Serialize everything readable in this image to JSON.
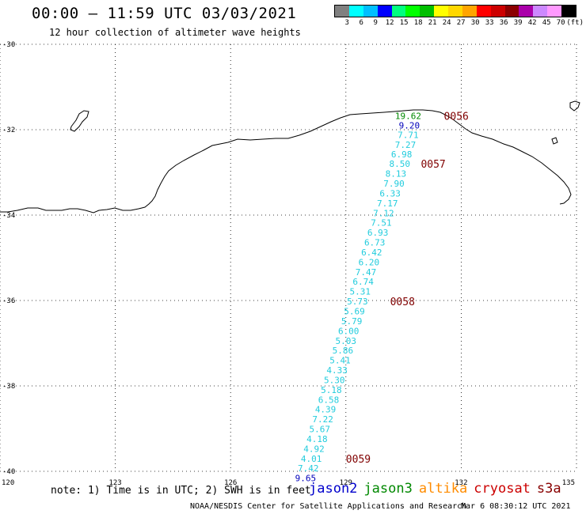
{
  "header": {
    "title": "00:00 — 11:59 UTC 03/03/2021",
    "subtitle": "12 hour collection of altimeter wave heights"
  },
  "legend": {
    "colors": [
      "#808080",
      "#00ffff",
      "#00bfff",
      "#0000ff",
      "#00ff7f",
      "#00ff00",
      "#00bf00",
      "#ffff00",
      "#ffd700",
      "#ffa500",
      "#ff0000",
      "#cc0000",
      "#8b0000",
      "#aa00aa",
      "#cc88ff",
      "#ff99ff",
      "#000000"
    ],
    "labels": [
      "3",
      "6",
      "9",
      "12",
      "15",
      "18",
      "21",
      "24",
      "27",
      "30",
      "33",
      "36",
      "39",
      "42",
      "45",
      "70",
      "(ft)"
    ]
  },
  "map": {
    "lon_ticks": [
      "120",
      "123",
      "126",
      "129",
      "132",
      "135"
    ],
    "lat_ticks": [
      "-30",
      "-32",
      "-34",
      "-36",
      "-38",
      "-40"
    ],
    "track_colors": {
      "cyan": "#22ccdd",
      "blue": "#0000bb",
      "green": "#008800",
      "maroon": "#800000"
    },
    "track_labels": [
      {
        "text": "19.62",
        "lon": 130.62,
        "lat": -31.68,
        "color": "green"
      },
      {
        "text": "9.20",
        "lon": 130.65,
        "lat": -31.9,
        "color": "blue"
      },
      {
        "text": "7.71",
        "lon": 130.62,
        "lat": -32.12,
        "color": "cyan"
      },
      {
        "text": "7.27",
        "lon": 130.55,
        "lat": -32.35,
        "color": "cyan"
      },
      {
        "text": "6.98",
        "lon": 130.45,
        "lat": -32.57,
        "color": "cyan"
      },
      {
        "text": "8.50",
        "lon": 130.4,
        "lat": -32.8,
        "color": "cyan"
      },
      {
        "text": "8.13",
        "lon": 130.3,
        "lat": -33.03,
        "color": "cyan"
      },
      {
        "text": "7.90",
        "lon": 130.25,
        "lat": -33.26,
        "color": "cyan"
      },
      {
        "text": "6.33",
        "lon": 130.15,
        "lat": -33.49,
        "color": "cyan"
      },
      {
        "text": "7.17",
        "lon": 130.08,
        "lat": -33.72,
        "color": "cyan"
      },
      {
        "text": "7.12",
        "lon": 129.98,
        "lat": -33.95,
        "color": "cyan"
      },
      {
        "text": "7.51",
        "lon": 129.92,
        "lat": -34.18,
        "color": "cyan"
      },
      {
        "text": "6.93",
        "lon": 129.83,
        "lat": -34.41,
        "color": "cyan"
      },
      {
        "text": "6.73",
        "lon": 129.75,
        "lat": -34.64,
        "color": "cyan"
      },
      {
        "text": "6.42",
        "lon": 129.67,
        "lat": -34.87,
        "color": "cyan"
      },
      {
        "text": "6.20",
        "lon": 129.6,
        "lat": -35.1,
        "color": "cyan"
      },
      {
        "text": "7.47",
        "lon": 129.52,
        "lat": -35.33,
        "color": "cyan"
      },
      {
        "text": "6.74",
        "lon": 129.45,
        "lat": -35.56,
        "color": "cyan"
      },
      {
        "text": "5.31",
        "lon": 129.37,
        "lat": -35.79,
        "color": "cyan"
      },
      {
        "text": "5.73",
        "lon": 129.3,
        "lat": -36.02,
        "color": "cyan"
      },
      {
        "text": "5.69",
        "lon": 129.22,
        "lat": -36.25,
        "color": "cyan"
      },
      {
        "text": "5.79",
        "lon": 129.15,
        "lat": -36.48,
        "color": "cyan"
      },
      {
        "text": "6.00",
        "lon": 129.07,
        "lat": -36.71,
        "color": "cyan"
      },
      {
        "text": "5.03",
        "lon": 129.0,
        "lat": -36.94,
        "color": "cyan"
      },
      {
        "text": "5.86",
        "lon": 128.92,
        "lat": -37.17,
        "color": "cyan"
      },
      {
        "text": "5.41",
        "lon": 128.85,
        "lat": -37.4,
        "color": "cyan"
      },
      {
        "text": "4.33",
        "lon": 128.77,
        "lat": -37.63,
        "color": "cyan"
      },
      {
        "text": "5.30",
        "lon": 128.7,
        "lat": -37.86,
        "color": "cyan"
      },
      {
        "text": "5.18",
        "lon": 128.62,
        "lat": -38.09,
        "color": "cyan"
      },
      {
        "text": "6.58",
        "lon": 128.55,
        "lat": -38.32,
        "color": "cyan"
      },
      {
        "text": "4.39",
        "lon": 128.47,
        "lat": -38.55,
        "color": "cyan"
      },
      {
        "text": "7.22",
        "lon": 128.4,
        "lat": -38.78,
        "color": "cyan"
      },
      {
        "text": "5.67",
        "lon": 128.32,
        "lat": -39.01,
        "color": "cyan"
      },
      {
        "text": "4.18",
        "lon": 128.25,
        "lat": -39.24,
        "color": "cyan"
      },
      {
        "text": "4.92",
        "lon": 128.17,
        "lat": -39.47,
        "color": "cyan"
      },
      {
        "text": "4.01",
        "lon": 128.1,
        "lat": -39.7,
        "color": "cyan"
      },
      {
        "text": "7.42",
        "lon": 128.02,
        "lat": -39.93,
        "color": "cyan"
      },
      {
        "text": "9.65",
        "lon": 127.95,
        "lat": -40.16,
        "color": "blue"
      }
    ],
    "time_labels": [
      {
        "text": "0056",
        "lon": 131.55,
        "lat": -31.68
      },
      {
        "text": "0057",
        "lon": 130.95,
        "lat": -32.8
      },
      {
        "text": "0058",
        "lon": 130.15,
        "lat": -36.02
      },
      {
        "text": "0059",
        "lon": 129.0,
        "lat": -39.7
      }
    ]
  },
  "footer": {
    "note": "note: 1) Time is in UTC; 2) SWH is in feet",
    "satellites": [
      {
        "name": "jason2",
        "color": "#0000cc"
      },
      {
        "name": "jason3",
        "color": "#008800"
      },
      {
        "name": "altika",
        "color": "#ff8c00"
      },
      {
        "name": "cryosat",
        "color": "#cc0000"
      },
      {
        "name": "s3a",
        "color": "#880000"
      }
    ],
    "credit": "NOAA/NESDIS Center for Satellite Applications and Research",
    "date": "Mar  6 08:30:12 UTC 2021"
  }
}
